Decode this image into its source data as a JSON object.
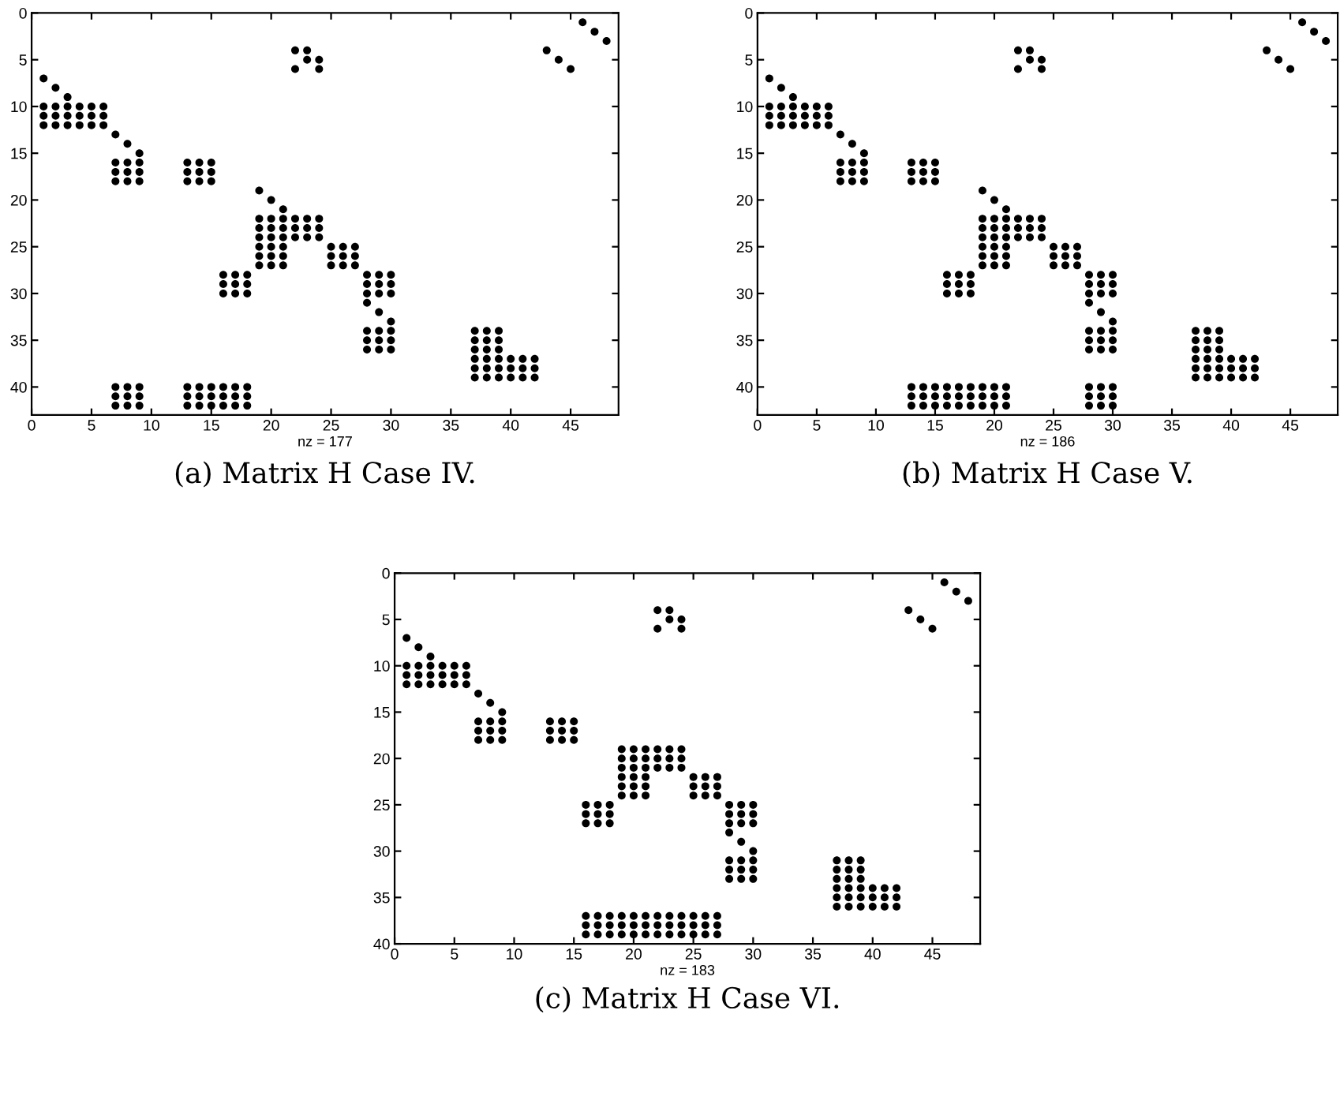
{
  "chart_data": [
    {
      "type": "scatter",
      "title": "(a) Matrix H Case IV.",
      "xlabel": "nz = 177",
      "xlim": [
        0,
        49
      ],
      "ylim": [
        43,
        0
      ],
      "xticks": [
        0,
        5,
        10,
        15,
        20,
        25,
        30,
        35,
        40,
        45
      ],
      "yticks": [
        0,
        5,
        10,
        15,
        20,
        25,
        30,
        35,
        40
      ],
      "marker": "circle",
      "grid": false,
      "legend": false,
      "series": [
        {
          "color": "#000000",
          "x": [
            1,
            2,
            3,
            1,
            2,
            3,
            4,
            5,
            6,
            1,
            2,
            3,
            4,
            5,
            6,
            1,
            2,
            3,
            4,
            5,
            6,
            7,
            8,
            9,
            7,
            8,
            9,
            7,
            8,
            9,
            7,
            8,
            9,
            13,
            14,
            15,
            13,
            14,
            15,
            13,
            14,
            15,
            22,
            23,
            23,
            24,
            22,
            24,
            46,
            47,
            48,
            43,
            44,
            45,
            19,
            20,
            21,
            19,
            20,
            21,
            19,
            20,
            21,
            19,
            20,
            21,
            19,
            20,
            21,
            19,
            20,
            21,
            19,
            20,
            21,
            22,
            23,
            24,
            22,
            23,
            24,
            22,
            23,
            24,
            25,
            26,
            27,
            25,
            26,
            27,
            25,
            26,
            27,
            16,
            17,
            18,
            16,
            17,
            18,
            16,
            17,
            18,
            28,
            29,
            30,
            28,
            29,
            30,
            28,
            29,
            30,
            28,
            29,
            30,
            28,
            29,
            30,
            28,
            29,
            30,
            28,
            29,
            30,
            37,
            38,
            39,
            37,
            38,
            39,
            37,
            38,
            39,
            37,
            38,
            39,
            37,
            38,
            39,
            37,
            38,
            39,
            40,
            41,
            42,
            40,
            41,
            42,
            40,
            41,
            42,
            7,
            8,
            9,
            7,
            8,
            9,
            7,
            8,
            9,
            13,
            14,
            15,
            16,
            17,
            18,
            13,
            14,
            15,
            16,
            17,
            18,
            13,
            14,
            15,
            16,
            17,
            18
          ],
          "values": [
            7,
            8,
            9,
            10,
            10,
            10,
            10,
            10,
            10,
            11,
            11,
            11,
            11,
            11,
            11,
            12,
            12,
            12,
            12,
            12,
            12,
            13,
            14,
            15,
            16,
            16,
            16,
            17,
            17,
            17,
            18,
            18,
            18,
            16,
            16,
            16,
            17,
            17,
            17,
            18,
            18,
            18,
            4,
            4,
            5,
            5,
            6,
            6,
            1,
            2,
            3,
            4,
            5,
            6,
            19,
            20,
            21,
            22,
            22,
            22,
            23,
            23,
            23,
            24,
            24,
            24,
            25,
            25,
            25,
            26,
            26,
            26,
            27,
            27,
            27,
            22,
            22,
            22,
            23,
            23,
            23,
            24,
            24,
            24,
            25,
            25,
            25,
            26,
            26,
            26,
            27,
            27,
            27,
            28,
            28,
            28,
            29,
            29,
            29,
            30,
            30,
            30,
            28,
            28,
            28,
            29,
            29,
            29,
            30,
            30,
            30,
            31,
            32,
            33,
            34,
            34,
            34,
            35,
            35,
            35,
            36,
            36,
            36,
            34,
            34,
            34,
            35,
            35,
            35,
            36,
            36,
            36,
            37,
            37,
            37,
            38,
            38,
            38,
            39,
            39,
            39,
            37,
            37,
            37,
            38,
            38,
            38,
            39,
            39,
            39,
            40,
            40,
            40,
            41,
            41,
            41,
            42,
            42,
            42,
            40,
            40,
            40,
            40,
            40,
            40,
            41,
            41,
            41,
            41,
            41,
            41,
            42,
            42,
            42,
            42,
            42,
            42
          ]
        }
      ]
    },
    {
      "type": "scatter",
      "title": "(b) Matrix H Case V.",
      "xlabel": "nz = 186",
      "xlim": [
        0,
        49
      ],
      "ylim": [
        43,
        0
      ],
      "xticks": [
        0,
        5,
        10,
        15,
        20,
        25,
        30,
        35,
        40,
        45
      ],
      "yticks": [
        0,
        5,
        10,
        15,
        20,
        25,
        30,
        35,
        40
      ],
      "marker": "circle",
      "grid": false,
      "legend": false,
      "series": [
        {
          "color": "#000000",
          "x": [
            1,
            2,
            3,
            1,
            2,
            3,
            4,
            5,
            6,
            1,
            2,
            3,
            4,
            5,
            6,
            1,
            2,
            3,
            4,
            5,
            6,
            7,
            8,
            9,
            7,
            8,
            9,
            7,
            8,
            9,
            7,
            8,
            9,
            13,
            14,
            15,
            13,
            14,
            15,
            13,
            14,
            15,
            22,
            23,
            23,
            24,
            22,
            24,
            46,
            47,
            48,
            43,
            44,
            45,
            19,
            20,
            21,
            19,
            20,
            21,
            19,
            20,
            21,
            19,
            20,
            21,
            19,
            20,
            21,
            19,
            20,
            21,
            19,
            20,
            21,
            22,
            23,
            24,
            22,
            23,
            24,
            22,
            23,
            24,
            25,
            26,
            27,
            25,
            26,
            27,
            25,
            26,
            27,
            16,
            17,
            18,
            16,
            17,
            18,
            16,
            17,
            18,
            28,
            29,
            30,
            28,
            29,
            30,
            28,
            29,
            30,
            28,
            29,
            30,
            28,
            29,
            30,
            28,
            29,
            30,
            28,
            29,
            30,
            37,
            38,
            39,
            37,
            38,
            39,
            37,
            38,
            39,
            37,
            38,
            39,
            37,
            38,
            39,
            37,
            38,
            39,
            40,
            41,
            42,
            40,
            41,
            42,
            40,
            41,
            42,
            13,
            14,
            15,
            16,
            17,
            18,
            19,
            20,
            21,
            13,
            14,
            15,
            16,
            17,
            18,
            19,
            20,
            21,
            13,
            14,
            15,
            16,
            17,
            18,
            19,
            20,
            21,
            28,
            29,
            30,
            28,
            29,
            30,
            28,
            29,
            30
          ],
          "values": [
            7,
            8,
            9,
            10,
            10,
            10,
            10,
            10,
            10,
            11,
            11,
            11,
            11,
            11,
            11,
            12,
            12,
            12,
            12,
            12,
            12,
            13,
            14,
            15,
            16,
            16,
            16,
            17,
            17,
            17,
            18,
            18,
            18,
            16,
            16,
            16,
            17,
            17,
            17,
            18,
            18,
            18,
            4,
            4,
            5,
            5,
            6,
            6,
            1,
            2,
            3,
            4,
            5,
            6,
            19,
            20,
            21,
            22,
            22,
            22,
            23,
            23,
            23,
            24,
            24,
            24,
            25,
            25,
            25,
            26,
            26,
            26,
            27,
            27,
            27,
            22,
            22,
            22,
            23,
            23,
            23,
            24,
            24,
            24,
            25,
            25,
            25,
            26,
            26,
            26,
            27,
            27,
            27,
            28,
            28,
            28,
            29,
            29,
            29,
            30,
            30,
            30,
            28,
            28,
            28,
            29,
            29,
            29,
            30,
            30,
            30,
            31,
            32,
            33,
            34,
            34,
            34,
            35,
            35,
            35,
            36,
            36,
            36,
            34,
            34,
            34,
            35,
            35,
            35,
            36,
            36,
            36,
            37,
            37,
            37,
            38,
            38,
            38,
            39,
            39,
            39,
            37,
            37,
            37,
            38,
            38,
            38,
            39,
            39,
            39,
            40,
            40,
            40,
            40,
            40,
            40,
            40,
            40,
            40,
            41,
            41,
            41,
            41,
            41,
            41,
            41,
            41,
            41,
            42,
            42,
            42,
            42,
            42,
            42,
            42,
            42,
            42,
            40,
            40,
            40,
            41,
            41,
            41,
            42,
            42,
            42
          ]
        }
      ]
    },
    {
      "type": "scatter",
      "title": "(c) Matrix H Case VI.",
      "xlabel": "nz = 183",
      "xlim": [
        0,
        49
      ],
      "ylim": [
        40,
        0
      ],
      "xticks": [
        0,
        5,
        10,
        15,
        20,
        25,
        30,
        35,
        40,
        45
      ],
      "yticks": [
        0,
        5,
        10,
        15,
        20,
        25,
        30,
        35,
        40
      ],
      "marker": "circle",
      "grid": false,
      "legend": false,
      "series": [
        {
          "color": "#000000",
          "x": [
            1,
            2,
            3,
            1,
            2,
            3,
            4,
            5,
            6,
            1,
            2,
            3,
            4,
            5,
            6,
            1,
            2,
            3,
            4,
            5,
            6,
            7,
            8,
            9,
            7,
            8,
            9,
            7,
            8,
            9,
            7,
            8,
            9,
            13,
            14,
            15,
            13,
            14,
            15,
            13,
            14,
            15,
            22,
            23,
            23,
            24,
            22,
            24,
            46,
            47,
            48,
            43,
            44,
            45,
            19,
            20,
            21,
            19,
            20,
            21,
            19,
            20,
            21,
            19,
            20,
            21,
            19,
            20,
            21,
            19,
            20,
            21,
            22,
            23,
            24,
            22,
            23,
            24,
            22,
            23,
            24,
            25,
            26,
            27,
            25,
            26,
            27,
            25,
            26,
            27,
            16,
            17,
            18,
            16,
            17,
            18,
            16,
            17,
            18,
            28,
            29,
            30,
            28,
            29,
            30,
            28,
            29,
            30,
            28,
            29,
            30,
            28,
            29,
            30,
            28,
            29,
            30,
            28,
            29,
            30,
            37,
            38,
            39,
            37,
            38,
            39,
            37,
            38,
            39,
            37,
            38,
            39,
            37,
            38,
            39,
            37,
            38,
            39,
            40,
            41,
            42,
            40,
            41,
            42,
            40,
            41,
            42,
            16,
            17,
            18,
            19,
            20,
            21,
            22,
            23,
            24,
            25,
            26,
            27,
            16,
            17,
            18,
            19,
            20,
            21,
            22,
            23,
            24,
            25,
            26,
            27,
            16,
            17,
            18,
            19,
            20,
            21,
            22,
            23,
            24,
            25,
            26,
            27
          ],
          "values": [
            7,
            8,
            9,
            10,
            10,
            10,
            10,
            10,
            10,
            11,
            11,
            11,
            11,
            11,
            11,
            12,
            12,
            12,
            12,
            12,
            12,
            13,
            14,
            15,
            16,
            16,
            16,
            17,
            17,
            17,
            18,
            18,
            18,
            16,
            16,
            16,
            17,
            17,
            17,
            18,
            18,
            18,
            4,
            4,
            5,
            5,
            6,
            6,
            1,
            2,
            3,
            4,
            5,
            6,
            19,
            19,
            19,
            20,
            20,
            20,
            21,
            21,
            21,
            22,
            22,
            22,
            23,
            23,
            23,
            24,
            24,
            24,
            19,
            19,
            19,
            20,
            20,
            20,
            21,
            21,
            21,
            22,
            22,
            22,
            23,
            23,
            23,
            24,
            24,
            24,
            25,
            25,
            25,
            26,
            26,
            26,
            27,
            27,
            27,
            25,
            25,
            25,
            26,
            26,
            26,
            27,
            27,
            27,
            28,
            29,
            30,
            31,
            31,
            31,
            32,
            32,
            32,
            33,
            33,
            33,
            31,
            31,
            31,
            32,
            32,
            32,
            33,
            33,
            33,
            34,
            34,
            34,
            35,
            35,
            35,
            36,
            36,
            36,
            34,
            34,
            34,
            35,
            35,
            35,
            36,
            36,
            36,
            37,
            37,
            37,
            37,
            37,
            37,
            37,
            37,
            37,
            37,
            37,
            37,
            38,
            38,
            38,
            38,
            38,
            38,
            38,
            38,
            38,
            38,
            38,
            38,
            39,
            39,
            39,
            39,
            39,
            39,
            39,
            39,
            39,
            39,
            39,
            39
          ]
        }
      ]
    }
  ]
}
